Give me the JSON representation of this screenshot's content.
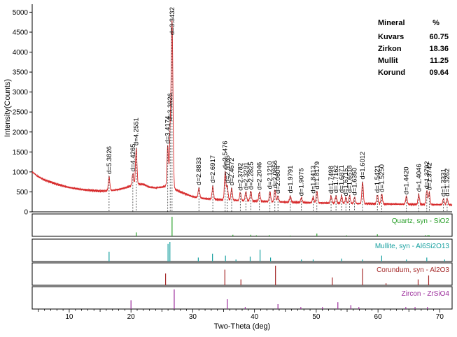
{
  "chart_data": {
    "type": "line",
    "ylabel": "Intensity(Counts)",
    "xlabel": "Two-Theta (deg)",
    "xlim": [
      4,
      72
    ],
    "ylim": [
      0,
      5200
    ],
    "yticks": [
      0,
      500,
      1000,
      1500,
      2000,
      2500,
      3000,
      3500,
      4000,
      4500,
      5000
    ],
    "xticks": [
      10,
      20,
      30,
      40,
      50,
      60,
      70
    ],
    "grid": false,
    "series_color": "#d62728",
    "background": [
      [
        4,
        1000
      ],
      [
        5,
        880
      ],
      [
        6,
        800
      ],
      [
        8,
        690
      ],
      [
        10,
        610
      ],
      [
        12,
        560
      ],
      [
        14,
        530
      ],
      [
        15,
        520
      ],
      [
        16,
        525
      ],
      [
        17,
        540
      ],
      [
        18,
        560
      ],
      [
        19,
        600
      ],
      [
        20,
        650
      ],
      [
        21,
        690
      ],
      [
        22,
        690
      ],
      [
        23,
        620
      ],
      [
        24,
        600
      ],
      [
        25,
        620
      ],
      [
        26,
        650
      ],
      [
        28,
        500
      ],
      [
        30,
        380
      ],
      [
        32,
        330
      ],
      [
        35,
        300
      ],
      [
        40,
        270
      ],
      [
        45,
        245
      ],
      [
        50,
        225
      ],
      [
        55,
        210
      ],
      [
        60,
        200
      ],
      [
        65,
        190
      ],
      [
        70,
        180
      ],
      [
        72,
        175
      ]
    ],
    "peaks": [
      {
        "x": 16.45,
        "height": 350,
        "label": "d=5.3826"
      },
      {
        "x": 20.3,
        "height": 300,
        "label": "d=4.4265"
      },
      {
        "x": 20.85,
        "height": 900,
        "label": "d=4.2551"
      },
      {
        "x": 25.95,
        "height": 1000,
        "label": "d=3.4174"
      },
      {
        "x": 26.35,
        "height": 1200,
        "label": "d=3.3926"
      },
      {
        "x": 26.65,
        "height": 4150,
        "label": "d=3.3432"
      },
      {
        "x": 31.0,
        "height": 250,
        "label": "d=2.8833"
      },
      {
        "x": 33.25,
        "height": 320,
        "label": "d=2.6917"
      },
      {
        "x": 35.25,
        "height": 700,
        "label": "d=2.5476"
      },
      {
        "x": 35.6,
        "height": 350,
        "label": "d=2.5165"
      },
      {
        "x": 36.3,
        "height": 300,
        "label": "d=2.4672"
      },
      {
        "x": 37.7,
        "height": 200,
        "label": "d=2.3782"
      },
      {
        "x": 38.6,
        "height": 220,
        "label": "d=2.3291"
      },
      {
        "x": 39.4,
        "height": 250,
        "label": "d=2.2825"
      },
      {
        "x": 40.8,
        "height": 230,
        "label": "d=2.2046"
      },
      {
        "x": 42.5,
        "height": 250,
        "label": "d=2.1210"
      },
      {
        "x": 43.3,
        "height": 300,
        "label": "d=2.0856"
      },
      {
        "x": 43.8,
        "height": 150,
        "label": "d=2.0604"
      },
      {
        "x": 45.8,
        "height": 150,
        "label": "d=1.9791"
      },
      {
        "x": 47.6,
        "height": 120,
        "label": "d=1.9075"
      },
      {
        "x": 49.5,
        "height": 150,
        "label": "d=1.8413"
      },
      {
        "x": 50.1,
        "height": 300,
        "label": "d=1.8179"
      },
      {
        "x": 52.4,
        "height": 180,
        "label": "d=1.7498"
      },
      {
        "x": 53.2,
        "height": 180,
        "label": "d=1.7162"
      },
      {
        "x": 54.1,
        "height": 200,
        "label": "d=1.6871"
      },
      {
        "x": 54.8,
        "height": 150,
        "label": "d=1.6715"
      },
      {
        "x": 55.4,
        "height": 200,
        "label": "d=1.6518"
      },
      {
        "x": 56.2,
        "height": 150,
        "label": "d=1.6350"
      },
      {
        "x": 57.5,
        "height": 550,
        "label": "d=1.6012"
      },
      {
        "x": 59.9,
        "height": 220,
        "label": "d=1.5421"
      },
      {
        "x": 60.6,
        "height": 250,
        "label": "d=1.5250"
      },
      {
        "x": 64.6,
        "height": 200,
        "label": "d=1.4420"
      },
      {
        "x": 66.6,
        "height": 250,
        "label": "d=1.4046"
      },
      {
        "x": 67.9,
        "height": 350,
        "label": "d=1.3792"
      },
      {
        "x": 68.3,
        "height": 300,
        "label": "d=1.3742"
      },
      {
        "x": 70.6,
        "height": 150,
        "label": "d=1.3331"
      },
      {
        "x": 71.2,
        "height": 150,
        "label": "d=1.3262"
      }
    ],
    "table": {
      "header": [
        "Mineral",
        "%"
      ],
      "rows": [
        [
          "Kuvars",
          "60.75"
        ],
        [
          "Zirkon",
          "18.36"
        ],
        [
          "Mullit",
          "11.25"
        ],
        [
          "Korund",
          "09.64"
        ]
      ]
    },
    "reference_panels": [
      {
        "name": "Quartz, syn - SiO2",
        "color": "#2ca02c",
        "sticks": [
          [
            20.85,
            0.2
          ],
          [
            26.65,
            1.0
          ],
          [
            36.5,
            0.08
          ],
          [
            39.4,
            0.08
          ],
          [
            40.3,
            0.05
          ],
          [
            42.4,
            0.06
          ],
          [
            45.8,
            0.04
          ],
          [
            50.1,
            0.14
          ],
          [
            54.9,
            0.05
          ],
          [
            59.9,
            0.1
          ],
          [
            64.0,
            0.03
          ],
          [
            67.7,
            0.06
          ],
          [
            68.1,
            0.07
          ],
          [
            68.3,
            0.05
          ]
        ]
      },
      {
        "name": "Mullite, syn - Al6Si2O13",
        "color": "#17a0a0",
        "sticks": [
          [
            16.45,
            0.5
          ],
          [
            26.0,
            0.9
          ],
          [
            26.3,
            1.0
          ],
          [
            30.9,
            0.2
          ],
          [
            33.2,
            0.4
          ],
          [
            35.3,
            0.3
          ],
          [
            37.0,
            0.1
          ],
          [
            39.3,
            0.25
          ],
          [
            40.9,
            0.6
          ],
          [
            42.6,
            0.2
          ],
          [
            47.6,
            0.1
          ],
          [
            49.5,
            0.1
          ],
          [
            54.1,
            0.15
          ],
          [
            57.5,
            0.1
          ],
          [
            60.6,
            0.3
          ],
          [
            64.6,
            0.1
          ],
          [
            67.9,
            0.2
          ],
          [
            70.8,
            0.1
          ]
        ]
      },
      {
        "name": "Corundum, syn - Al2O3",
        "color": "#a52a2a",
        "sticks": [
          [
            25.6,
            0.6
          ],
          [
            35.2,
            0.8
          ],
          [
            37.8,
            0.3
          ],
          [
            43.4,
            1.0
          ],
          [
            52.6,
            0.4
          ],
          [
            57.5,
            0.85
          ],
          [
            61.3,
            0.1
          ],
          [
            66.5,
            0.3
          ],
          [
            68.2,
            0.5
          ]
        ]
      },
      {
        "name": "Zircon - ZrSiO4",
        "color": "#9b2c9b",
        "sticks": [
          [
            20.0,
            0.45
          ],
          [
            27.0,
            1.0
          ],
          [
            35.6,
            0.5
          ],
          [
            38.5,
            0.1
          ],
          [
            43.8,
            0.25
          ],
          [
            47.5,
            0.1
          ],
          [
            51.0,
            0.1
          ],
          [
            53.5,
            0.35
          ],
          [
            55.6,
            0.2
          ],
          [
            56.9,
            0.1
          ],
          [
            64.5,
            0.1
          ],
          [
            66.0,
            0.1
          ],
          [
            68.0,
            0.1
          ]
        ]
      }
    ]
  }
}
